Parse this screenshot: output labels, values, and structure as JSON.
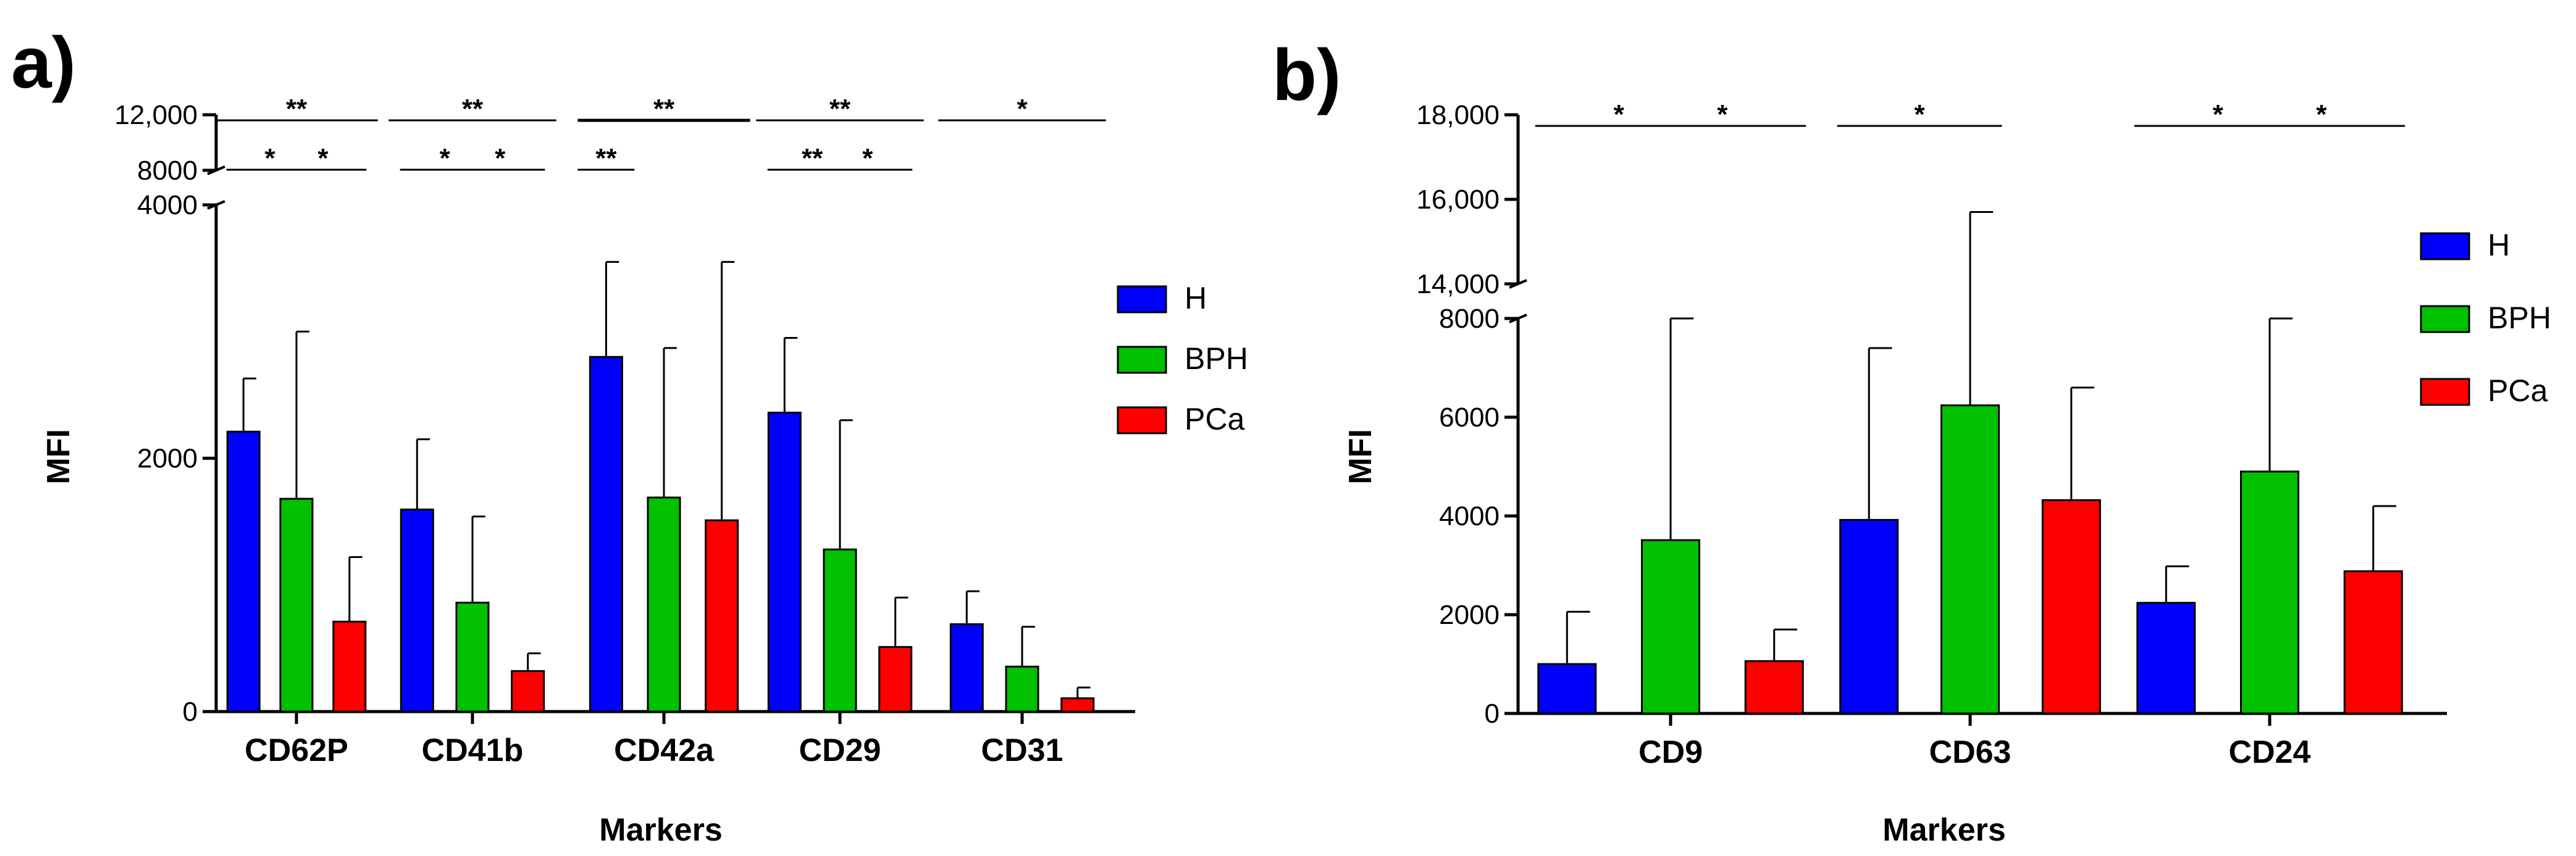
{
  "chart_data": [
    {
      "panel_label": "a)",
      "type": "bar",
      "xlabel": "Markers",
      "ylabel": "MFI",
      "categories": [
        "CD62P",
        "CD41b",
        "CD42a",
        "CD29",
        "CD31"
      ],
      "series": [
        {
          "name": "H",
          "color": "#0000ff",
          "values": [
            2210,
            1595,
            2800,
            2360,
            690
          ],
          "errors": [
            2630,
            2150,
            3550,
            2950,
            950
          ]
        },
        {
          "name": "BPH",
          "color": "#00c000",
          "values": [
            1680,
            860,
            1690,
            1280,
            355
          ],
          "errors": [
            3000,
            1540,
            2870,
            2300,
            670
          ]
        },
        {
          "name": "PCa",
          "color": "#ff0000",
          "values": [
            710,
            320,
            1510,
            510,
            105
          ],
          "errors": [
            1220,
            460,
            3550,
            900,
            190
          ]
        }
      ],
      "y_lower": {
        "range": [
          0,
          4000
        ],
        "ticks": [
          0,
          2000,
          4000
        ],
        "tick_labels": [
          "0",
          "2000",
          "4000"
        ]
      },
      "y_upper": {
        "range": [
          8000,
          12000
        ],
        "ticks": [
          8000,
          12000
        ],
        "tick_labels": [
          "8000",
          "12,000"
        ]
      },
      "significance": [
        {
          "category": 0,
          "from_series": 0,
          "to_series": 2,
          "tier": "upper",
          "label": "**"
        },
        {
          "category": 0,
          "from_series": 0,
          "to_series": 1,
          "tier": "lower",
          "label": "*"
        },
        {
          "category": 0,
          "from_series": 1,
          "to_series": 2,
          "tier": "lower",
          "label": "*"
        },
        {
          "category": 1,
          "from_series": 0,
          "to_series": 2,
          "tier": "upper",
          "label": "**"
        },
        {
          "category": 1,
          "from_series": 0,
          "to_series": 1,
          "tier": "lower",
          "label": "*"
        },
        {
          "category": 1,
          "from_series": 1,
          "to_series": 2,
          "tier": "lower",
          "label": "*"
        },
        {
          "category": 2,
          "from_series": 0,
          "to_series": 2,
          "tier": "upper",
          "label": "**"
        },
        {
          "category": 2,
          "from_series": 0,
          "to_series": 0,
          "tier": "lower",
          "label": "**"
        },
        {
          "category": 3,
          "from_series": 0,
          "to_series": 2,
          "tier": "upper",
          "label": "**"
        },
        {
          "category": 3,
          "from_series": 0,
          "to_series": 1,
          "tier": "lower",
          "label": "**"
        },
        {
          "category": 3,
          "from_series": 1,
          "to_series": 2,
          "tier": "lower",
          "label": "*"
        },
        {
          "category": 4,
          "from_series": 0,
          "to_series": 2,
          "tier": "upper",
          "label": "*"
        }
      ],
      "legend_position": "right"
    },
    {
      "panel_label": "b)",
      "type": "bar",
      "xlabel": "Markers",
      "ylabel": "MFI",
      "categories": [
        "CD9",
        "CD63",
        "CD24"
      ],
      "series": [
        {
          "name": "H",
          "color": "#0000ff",
          "values": [
            1000,
            3920,
            2240
          ],
          "errors": [
            2060,
            7400,
            2980
          ]
        },
        {
          "name": "BPH",
          "color": "#00c000",
          "values": [
            3510,
            6240,
            4900
          ],
          "errors": [
            8000,
            15700,
            8000
          ]
        },
        {
          "name": "PCa",
          "color": "#ff0000",
          "values": [
            1060,
            4320,
            2880
          ],
          "errors": [
            1700,
            6600,
            4200
          ]
        }
      ],
      "y_lower": {
        "range": [
          0,
          8000
        ],
        "ticks": [
          0,
          2000,
          4000,
          6000,
          8000
        ],
        "tick_labels": [
          "0",
          "2000",
          "4000",
          "6000",
          "8000"
        ]
      },
      "y_upper": {
        "range": [
          14000,
          18000
        ],
        "ticks": [
          14000,
          16000,
          18000
        ],
        "tick_labels": [
          "14,000",
          "16,000",
          "18,000"
        ]
      },
      "significance": [
        {
          "category": 0,
          "from_series": 0,
          "to_series": 1,
          "tier": "upper",
          "label": "*"
        },
        {
          "category": 0,
          "from_series": 1,
          "to_series": 2,
          "tier": "upper",
          "label": "*"
        },
        {
          "category": 1,
          "from_series": 0,
          "to_series": 1,
          "tier": "upper",
          "label": "*"
        },
        {
          "category": 2,
          "from_series": 0,
          "to_series": 1,
          "tier": "upper",
          "label": "*"
        },
        {
          "category": 2,
          "from_series": 1,
          "to_series": 2,
          "tier": "upper",
          "label": "*"
        }
      ],
      "legend_position": "right"
    }
  ]
}
